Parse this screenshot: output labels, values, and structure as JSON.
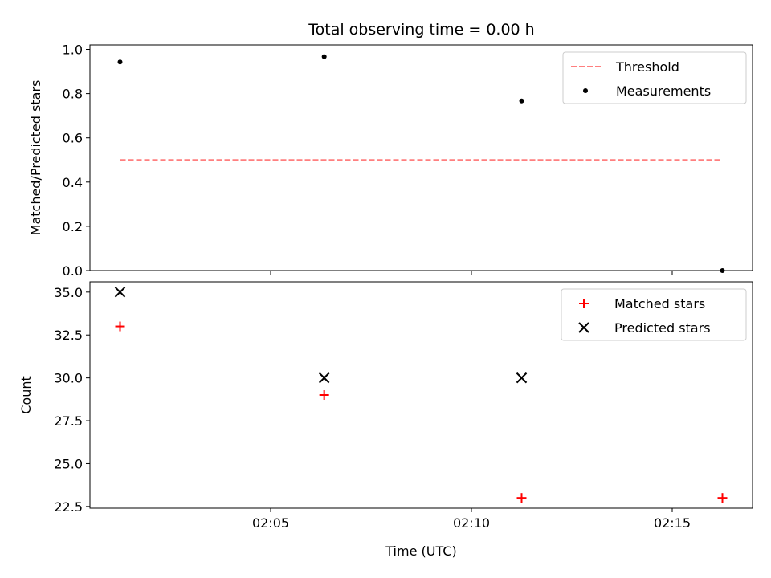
{
  "title": "Total observing time = 0.00 h",
  "chart_data": [
    {
      "type": "scatter",
      "name": "ratio-panel",
      "ylabel": "Matched/Predicted stars",
      "xlim": [
        "02:00:30",
        "02:17:00"
      ],
      "ylim": [
        0.0,
        1.02
      ],
      "yticks": [
        0.0,
        0.2,
        0.4,
        0.6,
        0.8,
        1.0
      ],
      "ytick_labels": [
        "0.0",
        "0.2",
        "0.4",
        "0.6",
        "0.8",
        "1.0"
      ],
      "legend_position": "top-right",
      "series": [
        {
          "name": "Threshold",
          "style": "dashed-line",
          "color": "#ff7f7f",
          "x": [
            "02:01:15",
            "02:16:15"
          ],
          "y": [
            0.5,
            0.5
          ]
        },
        {
          "name": "Measurements",
          "style": "dot",
          "color": "#000000",
          "x": [
            "02:01:15",
            "02:06:20",
            "02:11:15",
            "02:16:15"
          ],
          "y": [
            0.943,
            0.967,
            0.767,
            0.0
          ]
        }
      ]
    },
    {
      "type": "scatter",
      "name": "count-panel",
      "xlabel": "Time (UTC)",
      "ylabel": "Count",
      "xlim": [
        "02:00:30",
        "02:17:00"
      ],
      "ylim": [
        22.4,
        35.6
      ],
      "yticks": [
        22.5,
        25.0,
        27.5,
        30.0,
        32.5,
        35.0
      ],
      "ytick_labels": [
        "22.5",
        "25.0",
        "27.5",
        "30.0",
        "32.5",
        "35.0"
      ],
      "xticks": [
        "02:05",
        "02:10",
        "02:15"
      ],
      "legend_position": "top-right",
      "series": [
        {
          "name": "Matched stars",
          "style": "plus",
          "color": "#ff0000",
          "x": [
            "02:01:15",
            "02:06:20",
            "02:11:15",
            "02:16:15"
          ],
          "y": [
            33,
            29,
            23,
            23
          ]
        },
        {
          "name": "Predicted stars",
          "style": "cross",
          "color": "#000000",
          "x": [
            "02:01:15",
            "02:06:20",
            "02:11:15"
          ],
          "y": [
            35,
            30,
            30
          ]
        }
      ]
    }
  ]
}
